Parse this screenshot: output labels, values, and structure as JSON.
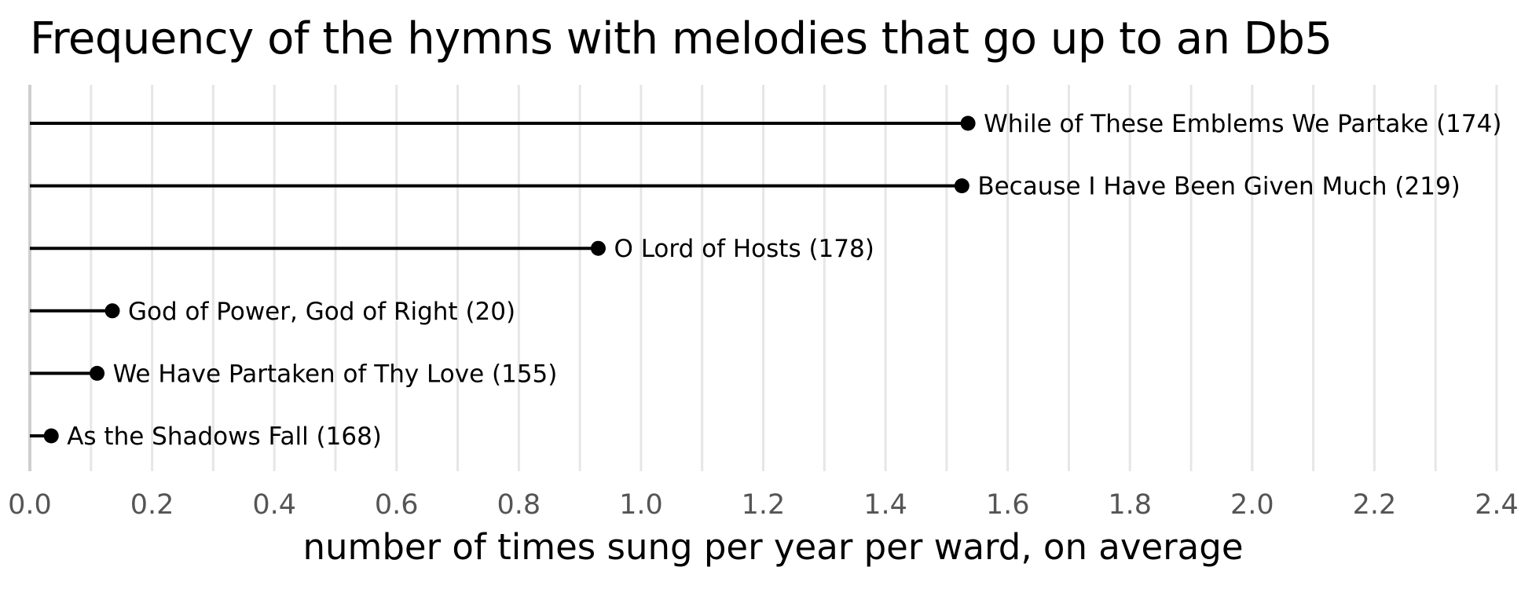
{
  "chart_data": {
    "type": "lollipop",
    "title": "Frequency of the hymns with melodies that go up to an Db5",
    "xlabel": "number of times sung per year per ward, on average",
    "ylabel": "",
    "xlim": [
      0,
      2.4
    ],
    "x_ticks": [
      0.0,
      0.2,
      0.4,
      0.6,
      0.8,
      1.0,
      1.2,
      1.4,
      1.6,
      1.8,
      2.0,
      2.2,
      2.4
    ],
    "x_tick_labels": [
      "0.0",
      "0.2",
      "0.4",
      "0.6",
      "0.8",
      "1.0",
      "1.2",
      "1.4",
      "1.6",
      "1.8",
      "2.0",
      "2.2",
      "2.4"
    ],
    "grid": "vertical",
    "points": [
      {
        "label": "While of These Emblems We Partake (174)",
        "value": 1.535
      },
      {
        "label": "Because I Have Been Given Much (219)",
        "value": 1.525
      },
      {
        "label": "O Lord of Hosts (178)",
        "value": 0.93
      },
      {
        "label": "God of Power, God of Right (20)",
        "value": 0.135
      },
      {
        "label": "We Have Partaken of Thy Love (155)",
        "value": 0.11
      },
      {
        "label": "As the Shadows Fall (168)",
        "value": 0.035
      }
    ],
    "colors": {
      "marks": "#000000",
      "grid": "#e6e6e6",
      "tick_text": "#555555"
    }
  }
}
